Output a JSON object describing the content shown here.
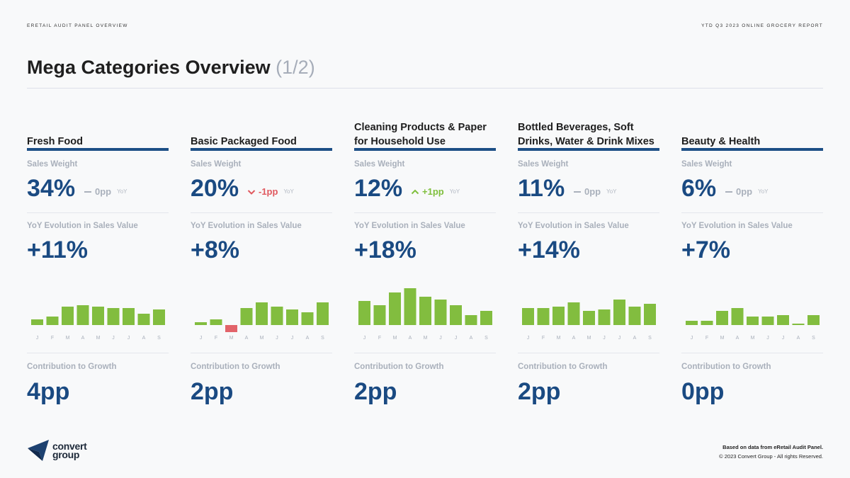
{
  "header": {
    "left": "ERETAIL AUDIT PANEL OVERVIEW",
    "right": "YTD Q3 2023 ONLINE GROCERY REPORT"
  },
  "title": {
    "main": "Mega Categories Overview",
    "pager": "(1/2)"
  },
  "labels": {
    "sales_weight": "Sales Weight",
    "yoy_evolution": "YoY Evolution in Sales Value",
    "contribution": "Contribution to Growth",
    "yoy_tag": "YoY"
  },
  "colors": {
    "accent": "#1a4a82",
    "rule": "#1d4f86",
    "bar_positive": "#82bd3f",
    "bar_negative": "#e2636a",
    "delta_flat": "#aab1bc",
    "delta_down": "#e0595f",
    "delta_up": "#7fbf3d"
  },
  "categories": [
    {
      "name": "Fresh Food",
      "sales_weight": "34%",
      "delta": "0pp",
      "delta_dir": "flat",
      "yoy": "+11%",
      "contribution": "4pp"
    },
    {
      "name": "Basic Packaged Food",
      "sales_weight": "20%",
      "delta": "-1pp",
      "delta_dir": "down",
      "yoy": "+8%",
      "contribution": "2pp"
    },
    {
      "name": "Cleaning Products & Paper for Household Use",
      "sales_weight": "12%",
      "delta": "+1pp",
      "delta_dir": "up",
      "yoy": "+18%",
      "contribution": "2pp"
    },
    {
      "name": "Bottled Beverages, Soft Drinks, Water & Drink Mixes",
      "sales_weight": "11%",
      "delta": "0pp",
      "delta_dir": "flat",
      "yoy": "+14%",
      "contribution": "2pp"
    },
    {
      "name": "Beauty & Health",
      "sales_weight": "6%",
      "delta": "0pp",
      "delta_dir": "flat",
      "yoy": "+7%",
      "contribution": "0pp"
    }
  ],
  "chart_data": [
    {
      "type": "bar",
      "title": "Fresh Food",
      "categories": [
        "J",
        "F",
        "M",
        "A",
        "M",
        "J",
        "J",
        "A",
        "S"
      ],
      "values": [
        4,
        6,
        13,
        14,
        13,
        12,
        12,
        8,
        11
      ],
      "ylim": [
        -6,
        25
      ]
    },
    {
      "type": "bar",
      "title": "Basic Packaged Food",
      "categories": [
        "J",
        "F",
        "M",
        "A",
        "M",
        "J",
        "J",
        "A",
        "S"
      ],
      "values": [
        2,
        4,
        -5,
        12,
        16,
        13,
        11,
        9,
        16
      ],
      "ylim": [
        -6,
        25
      ]
    },
    {
      "type": "bar",
      "title": "Cleaning Products & Paper for Household Use",
      "categories": [
        "J",
        "F",
        "M",
        "A",
        "M",
        "J",
        "J",
        "A",
        "S"
      ],
      "values": [
        17,
        14,
        23,
        26,
        20,
        18,
        14,
        7,
        10
      ],
      "ylim": [
        -6,
        25
      ]
    },
    {
      "type": "bar",
      "title": "Bottled Beverages, Soft Drinks, Water & Drink Mixes",
      "categories": [
        "J",
        "F",
        "M",
        "A",
        "M",
        "J",
        "J",
        "A",
        "S"
      ],
      "values": [
        12,
        12,
        13,
        16,
        10,
        11,
        18,
        13,
        15
      ],
      "ylim": [
        -6,
        25
      ]
    },
    {
      "type": "bar",
      "title": "Beauty & Health",
      "categories": [
        "J",
        "F",
        "M",
        "A",
        "M",
        "J",
        "J",
        "A",
        "S"
      ],
      "values": [
        3,
        3,
        10,
        12,
        6,
        6,
        7,
        1,
        7
      ],
      "ylim": [
        -6,
        25
      ]
    }
  ],
  "footer": {
    "logo_line1": "convert",
    "logo_line2": "group",
    "source": "Based on data from eRetail Audit Panel.",
    "copyright": "© 2023 Convert Group - All rights Reserved."
  }
}
